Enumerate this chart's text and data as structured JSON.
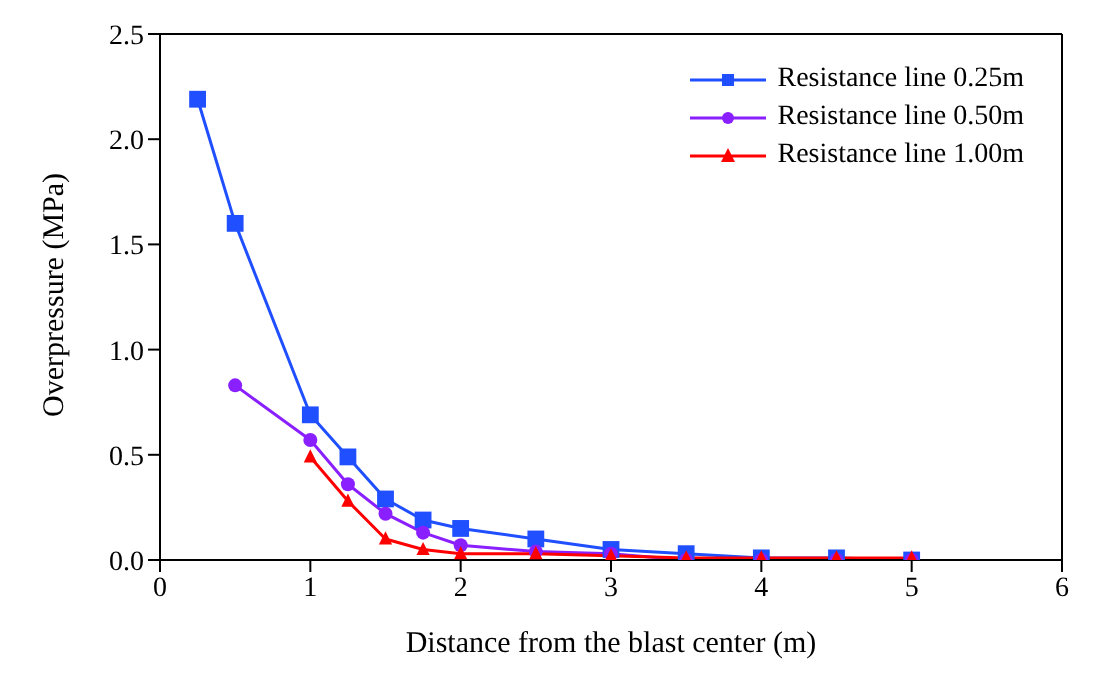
{
  "chart_data": {
    "type": "line",
    "xlabel": "Distance from the blast center (m)",
    "ylabel": "Overpressure (MPa)",
    "xlim": [
      0,
      6
    ],
    "xticks": [
      0,
      1,
      2,
      3,
      4,
      5,
      6
    ],
    "ylim": [
      0,
      2.5
    ],
    "yticks": [
      {
        "value": 0,
        "label": "0.0"
      },
      {
        "value": 0.5,
        "label": "0.5"
      },
      {
        "value": 1,
        "label": "1.0"
      },
      {
        "value": 1.5,
        "label": "1.5"
      },
      {
        "value": 2,
        "label": "2.0"
      },
      {
        "value": 2.5,
        "label": "2.5"
      }
    ],
    "legend": "top right",
    "line_style": "solid",
    "series": [
      {
        "name": "Resistance line 0.25m",
        "color": "#1f4fff",
        "marker": "square",
        "x": [
          0.25,
          0.5,
          1,
          1.25,
          1.5,
          1.75,
          2,
          2.5,
          3,
          3.5,
          4,
          4.5,
          5
        ],
        "values": [
          2.19,
          1.6,
          0.69,
          0.49,
          0.29,
          0.19,
          0.15,
          0.1,
          0.05,
          0.03,
          0.01,
          0.01,
          0.0
        ]
      },
      {
        "name": "Resistance line 0.50m",
        "color": "#8a1fff",
        "marker": "circle",
        "x": [
          0.5,
          1,
          1.25,
          1.5,
          1.75,
          2,
          2.5,
          3,
          3.5,
          4,
          4.5,
          5
        ],
        "values": [
          0.83,
          0.57,
          0.36,
          0.22,
          0.13,
          0.07,
          0.04,
          0.03,
          0.0,
          0.0,
          0.0,
          0.0
        ]
      },
      {
        "name": "Resistance line 1.00m",
        "color": "#ff0000",
        "marker": "triangle",
        "x": [
          1,
          1.25,
          1.5,
          1.75,
          2,
          2.5,
          3,
          3.5,
          4,
          4.5,
          5
        ],
        "values": [
          0.49,
          0.28,
          0.1,
          0.05,
          0.03,
          0.03,
          0.02,
          0.01,
          0.01,
          0.01,
          0.01
        ]
      }
    ]
  }
}
